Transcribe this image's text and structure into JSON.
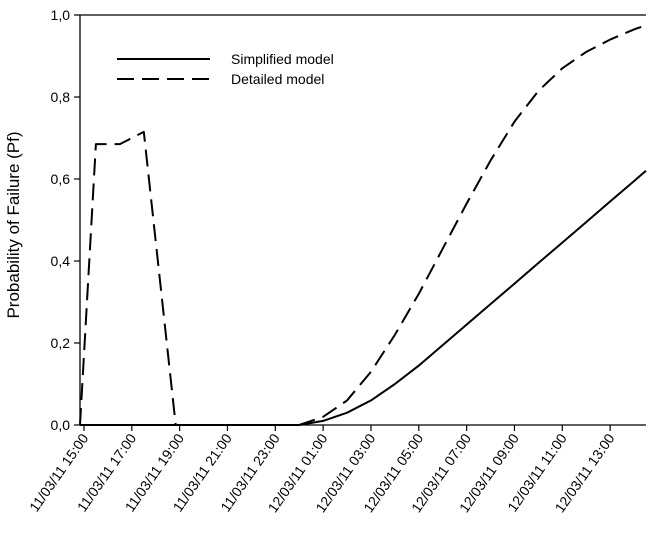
{
  "chart_data": {
    "type": "line",
    "title": "",
    "xlabel": "",
    "ylabel": "Probability of Failure (Pf)",
    "x_tick_labels": [
      "11/03/11 15:00",
      "11/03/11 17:00",
      "11/03/11 19:00",
      "11/03/11 21:00",
      "11/03/11 23:00",
      "12/03/11 01:00",
      "12/03/11 03:00",
      "12/03/11 05:00",
      "12/03/11 07:00",
      "12/03/11 09:00",
      "12/03/11 11:00",
      "12/03/11 13:00"
    ],
    "y_tick_labels": [
      "0,0",
      "0,2",
      "0,4",
      "0,6",
      "0,8",
      "1,0"
    ],
    "xlim": [
      "11/03/11 14:50",
      "12/03/11 14:30"
    ],
    "ylim": [
      0,
      1
    ],
    "grid": false,
    "legend_position": "top-left",
    "series": [
      {
        "name": "Simplified model",
        "style": "solid",
        "color": "#000000",
        "points": [
          [
            "11/03/11 14:50",
            0.0
          ],
          [
            "12/03/11 00:00",
            0.0
          ],
          [
            "12/03/11 01:00",
            0.01
          ],
          [
            "12/03/11 02:00",
            0.03
          ],
          [
            "12/03/11 03:00",
            0.06
          ],
          [
            "12/03/11 04:00",
            0.1
          ],
          [
            "12/03/11 05:00",
            0.145
          ],
          [
            "12/03/11 06:00",
            0.195
          ],
          [
            "12/03/11 07:00",
            0.245
          ],
          [
            "12/03/11 08:00",
            0.295
          ],
          [
            "12/03/11 09:00",
            0.345
          ],
          [
            "12/03/11 10:00",
            0.395
          ],
          [
            "12/03/11 11:00",
            0.445
          ],
          [
            "12/03/11 12:00",
            0.495
          ],
          [
            "12/03/11 13:00",
            0.545
          ],
          [
            "12/03/11 14:00",
            0.595
          ],
          [
            "12/03/11 14:30",
            0.62
          ]
        ]
      },
      {
        "name": "Detailed model",
        "style": "dashed",
        "color": "#000000",
        "points": [
          [
            "11/03/11 14:50",
            0.0
          ],
          [
            "11/03/11 15:30",
            0.685
          ],
          [
            "11/03/11 16:30",
            0.685
          ],
          [
            "11/03/11 17:30",
            0.715
          ],
          [
            "11/03/11 18:50",
            0.0
          ],
          [
            "12/03/11 00:00",
            0.0
          ],
          [
            "12/03/11 01:00",
            0.02
          ],
          [
            "12/03/11 02:00",
            0.06
          ],
          [
            "12/03/11 03:00",
            0.13
          ],
          [
            "12/03/11 04:00",
            0.22
          ],
          [
            "12/03/11 05:00",
            0.32
          ],
          [
            "12/03/11 06:00",
            0.43
          ],
          [
            "12/03/11 07:00",
            0.54
          ],
          [
            "12/03/11 08:00",
            0.645
          ],
          [
            "12/03/11 09:00",
            0.74
          ],
          [
            "12/03/11 10:00",
            0.815
          ],
          [
            "12/03/11 11:00",
            0.87
          ],
          [
            "12/03/11 12:00",
            0.91
          ],
          [
            "12/03/11 13:00",
            0.94
          ],
          [
            "12/03/11 14:00",
            0.965
          ],
          [
            "12/03/11 14:30",
            0.975
          ]
        ]
      }
    ]
  }
}
